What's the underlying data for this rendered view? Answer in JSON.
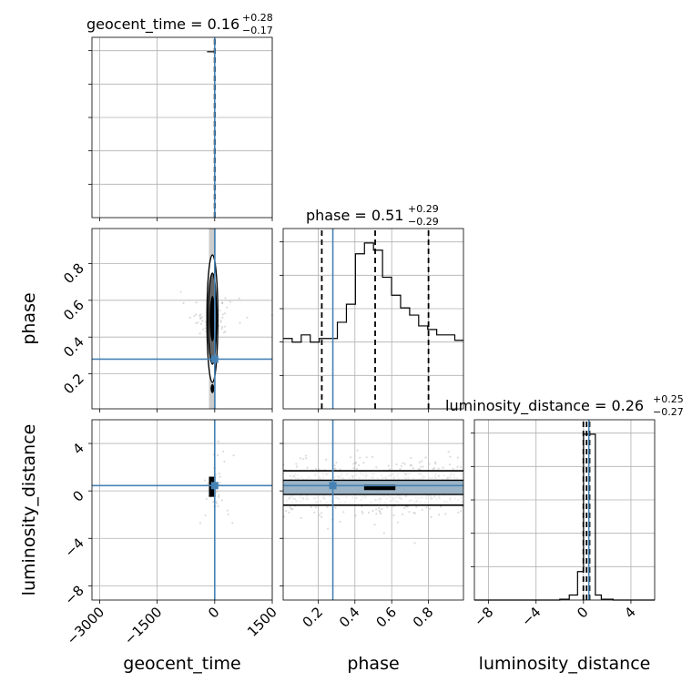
{
  "colors": {
    "truth": "#4682b4",
    "hist": "#000000",
    "grid": "#b0b0b0",
    "scatter": "#9a9a9a"
  },
  "chart_data": {
    "type": "corner",
    "parameters": [
      "geocent_time",
      "phase",
      "luminosity_distance"
    ],
    "titles": [
      {
        "param": "geocent_time",
        "value": "0.16",
        "plus": "+0.28",
        "minus": "−0.17"
      },
      {
        "param": "phase",
        "value": "0.51",
        "plus": "+0.29",
        "minus": "−0.29"
      },
      {
        "param": "luminosity_distance",
        "value": "0.26",
        "plus": "+0.25",
        "minus": "−0.27"
      }
    ],
    "ranges": {
      "geocent_time": [
        -3200,
        1500
      ],
      "phase": [
        0.01,
        0.99
      ],
      "luminosity_distance": [
        -9.2,
        6.0
      ]
    },
    "ticks": {
      "geocent_time": {
        "values": [
          -3000,
          -1500,
          0,
          1500
        ],
        "labels": [
          "−3000",
          "−1500",
          "0",
          "1500"
        ]
      },
      "phase": {
        "values": [
          0.2,
          0.4,
          0.6,
          0.8
        ],
        "labels": [
          "0.2",
          "0.4",
          "0.6",
          "0.8"
        ]
      },
      "luminosity_distance": {
        "values": [
          -8,
          -4,
          0,
          4
        ],
        "labels": [
          "−8",
          "−4",
          "0",
          "4"
        ]
      }
    },
    "truths": {
      "geocent_time": 0,
      "phase": 0.28,
      "luminosity_distance": 0.45
    },
    "quantiles": {
      "geocent_time": [
        -0.01,
        0.16,
        0.44
      ],
      "phase": [
        0.22,
        0.51,
        0.8
      ],
      "luminosity_distance": [
        -0.01,
        0.26,
        0.51
      ]
    },
    "hist_geocent_time": {
      "edges": [
        -200,
        -5,
        5
      ],
      "counts": [
        1.0,
        1.0
      ]
    },
    "hist_phase": {
      "edges": [
        0.01,
        0.0591,
        0.1082,
        0.1573,
        0.2064,
        0.2555,
        0.3046,
        0.3537,
        0.4028,
        0.4519,
        0.501,
        0.5501,
        0.5992,
        0.6483,
        0.6974,
        0.7465,
        0.7956,
        0.8447,
        0.8938,
        0.9429,
        0.99
      ],
      "counts": [
        0.39,
        0.37,
        0.41,
        0.37,
        0.39,
        0.39,
        0.48,
        0.58,
        0.86,
        0.92,
        0.88,
        0.73,
        0.63,
        0.56,
        0.52,
        0.46,
        0.44,
        0.41,
        0.41,
        0.38
      ]
    },
    "hist_luminosity_distance": {
      "edges": [
        -9.2,
        -7.2,
        -5.2,
        -3.2,
        -2.0,
        -1.2,
        -0.5,
        0.0,
        0.5,
        1.0,
        1.5,
        2.5,
        4.0,
        6.0
      ],
      "counts": [
        0.0,
        0.0,
        0.0,
        0.0,
        0.005,
        0.03,
        0.17,
        0.99,
        0.99,
        0.03,
        0.005,
        0.0,
        0.0
      ]
    }
  }
}
